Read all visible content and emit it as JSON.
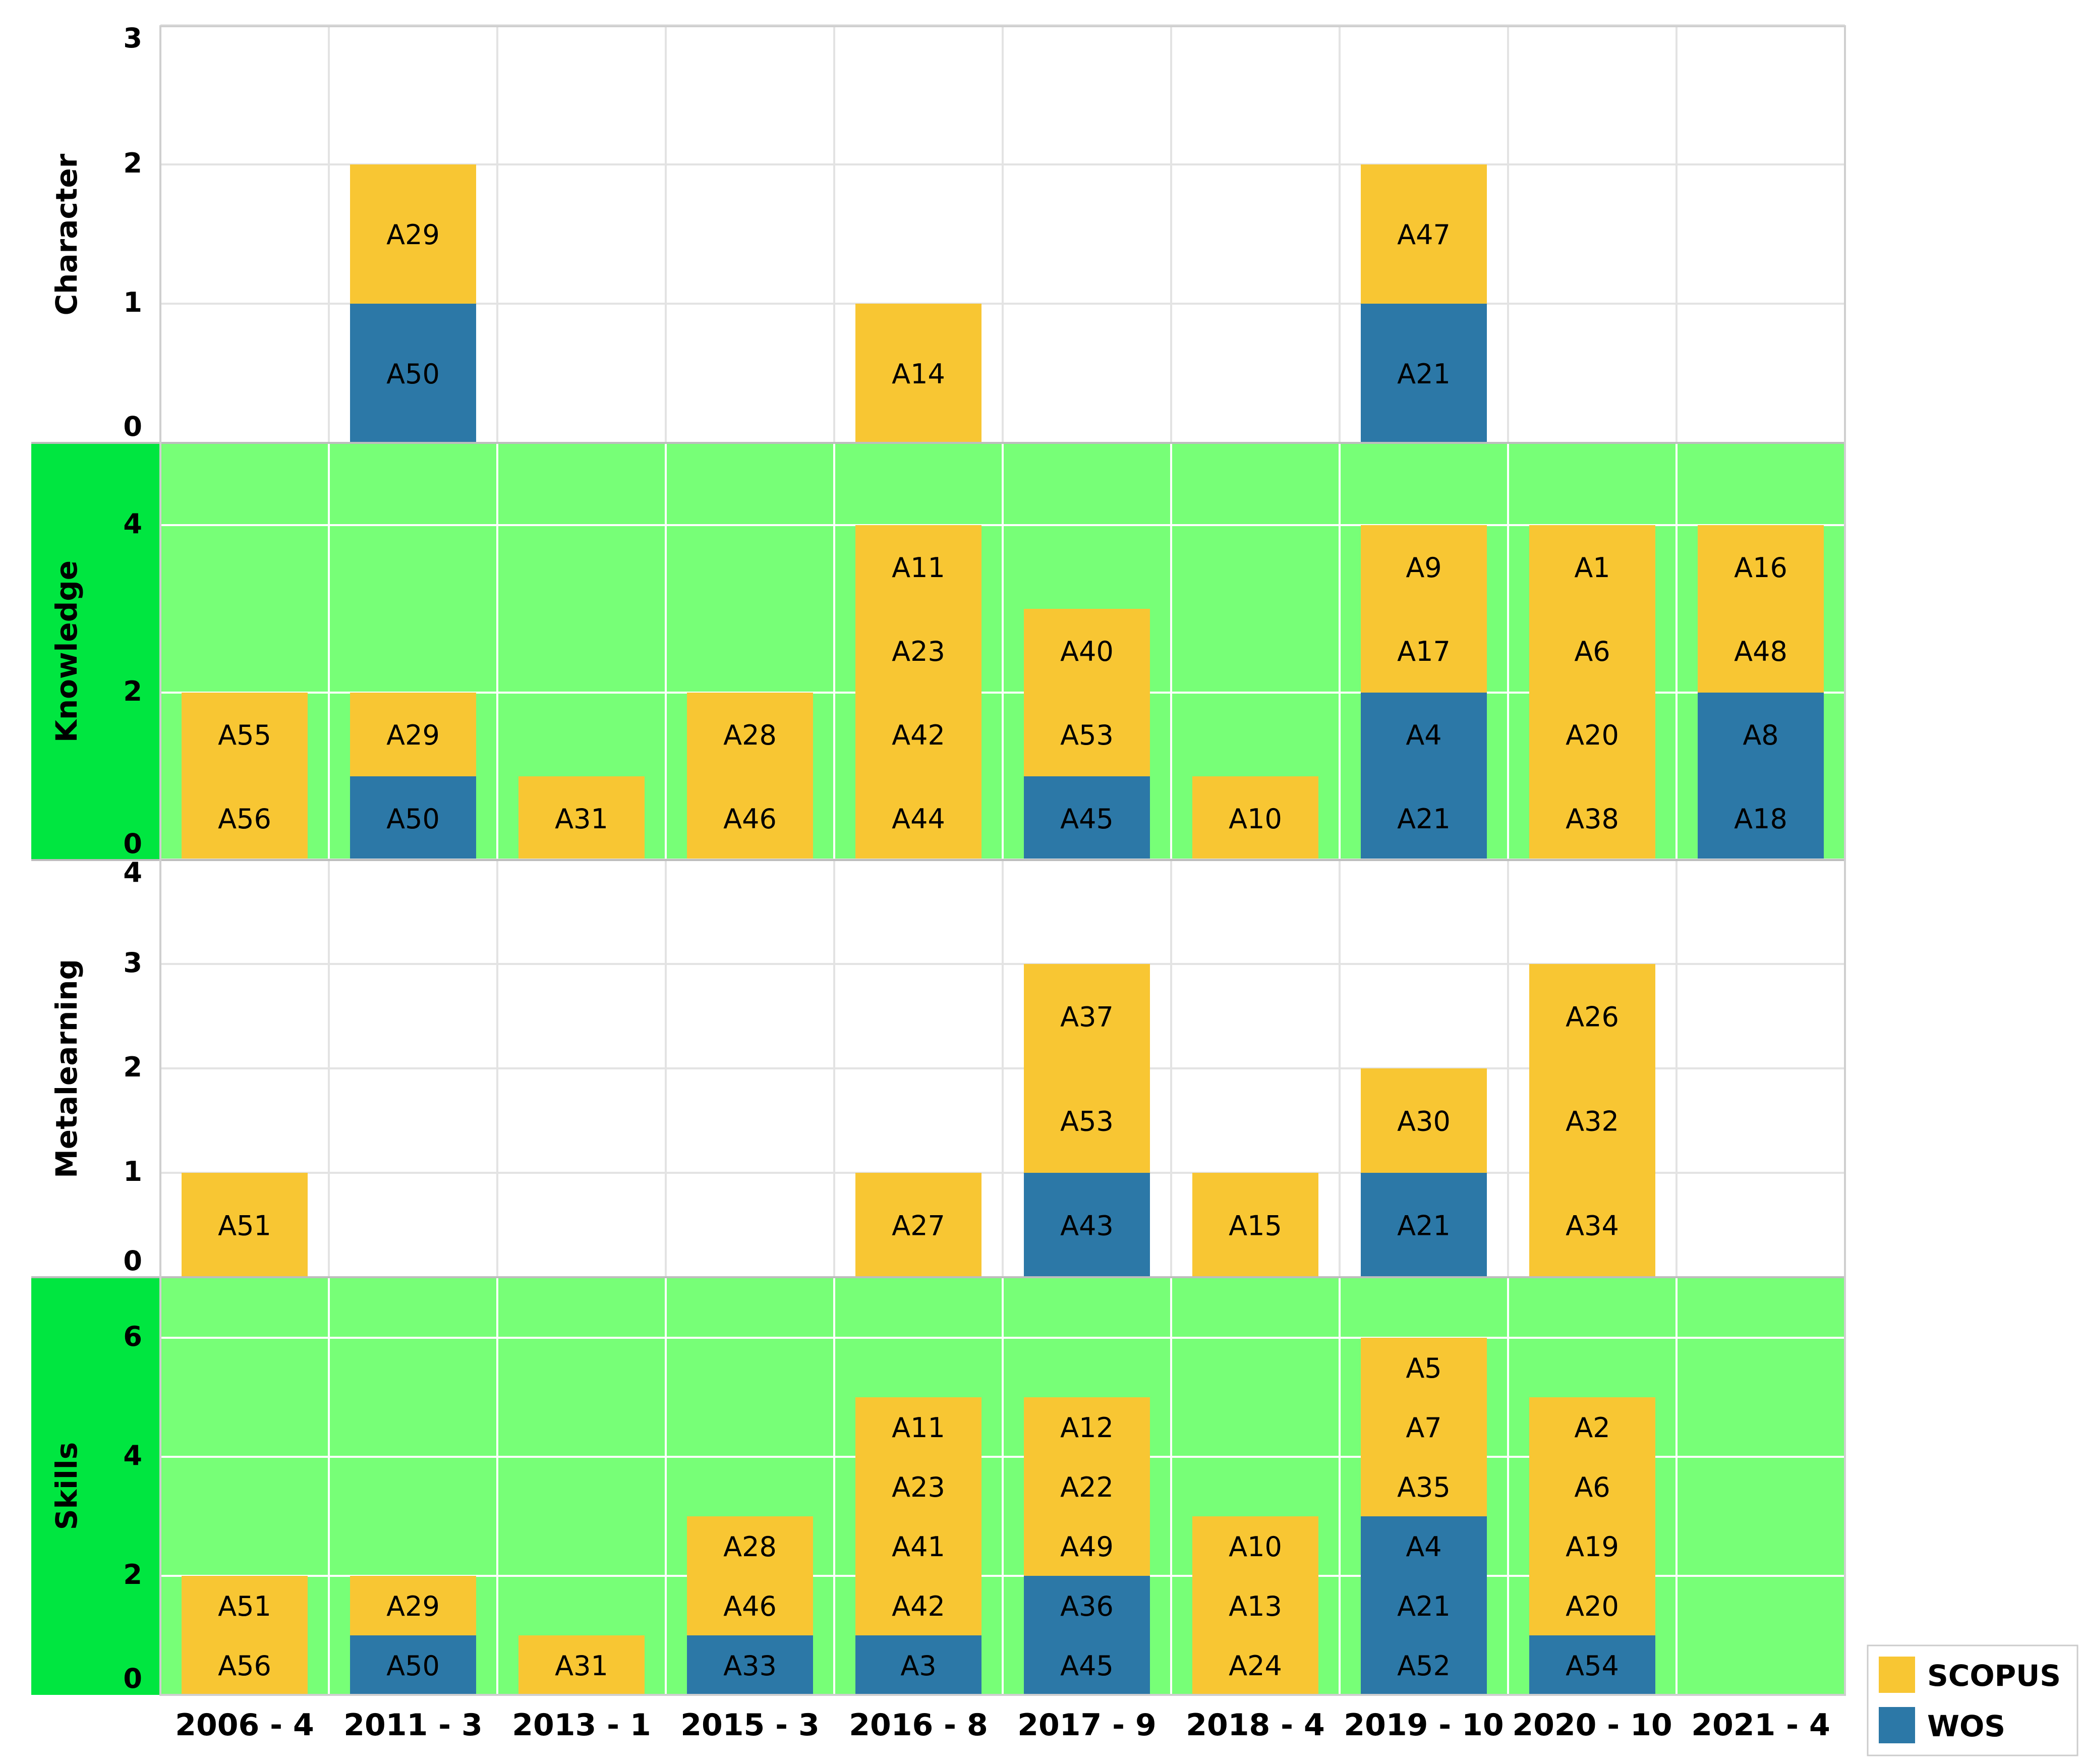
{
  "chart_data": {
    "type": "bar",
    "stacked": true,
    "categories": [
      "2006 - 4",
      "2011 - 3",
      "2013 - 1",
      "2015 - 3",
      "2016 - 8",
      "2017 - 9",
      "2018 - 4",
      "2019 - 10",
      "2020 - 10",
      "2021 - 4"
    ],
    "legend": {
      "position": "bottom-right",
      "items": [
        {
          "name": "SCOPUS",
          "color": "#f8c633"
        },
        {
          "name": "WOS",
          "color": "#2c78a7"
        }
      ]
    },
    "colors": {
      "scopus": "#f8c633",
      "wos": "#2c78a7",
      "panel_highlight": "#77ff77",
      "label_highlight": "#00e640",
      "grid_light": "#e3e3e3",
      "grid_on_green": "#ffffff"
    },
    "panels": [
      {
        "name": "Character",
        "highlight": false,
        "ylim": [
          0,
          3
        ],
        "yticks": [
          0,
          1,
          2,
          3
        ],
        "bars": [
          {
            "category": "2011 - 3",
            "wos": [
              "A50"
            ],
            "scopus": [
              "A29"
            ]
          },
          {
            "category": "2016 - 8",
            "wos": [],
            "scopus": [
              "A14"
            ]
          },
          {
            "category": "2019 - 10",
            "wos": [
              "A21"
            ],
            "scopus": [
              "A47"
            ]
          }
        ]
      },
      {
        "name": "Knowledge",
        "highlight": true,
        "ylim": [
          0,
          4.9
        ],
        "yticks": [
          0,
          2,
          4
        ],
        "bars": [
          {
            "category": "2006 - 4",
            "wos": [],
            "scopus": [
              "A56",
              "A55"
            ]
          },
          {
            "category": "2011 - 3",
            "wos": [
              "A50"
            ],
            "scopus": [
              "A29"
            ]
          },
          {
            "category": "2013 - 1",
            "wos": [],
            "scopus": [
              "A31"
            ]
          },
          {
            "category": "2015 - 3",
            "wos": [],
            "scopus": [
              "A46",
              "A28"
            ]
          },
          {
            "category": "2016 - 8",
            "wos": [],
            "scopus": [
              "A44",
              "A42",
              "A23",
              "A11"
            ]
          },
          {
            "category": "2017 - 9",
            "wos": [
              "A45"
            ],
            "scopus": [
              "A53",
              "A40"
            ]
          },
          {
            "category": "2018 - 4",
            "wos": [],
            "scopus": [
              "A10"
            ]
          },
          {
            "category": "2019 - 10",
            "wos": [
              "A21",
              "A4"
            ],
            "scopus": [
              "A17",
              "A9"
            ]
          },
          {
            "category": "2020 - 10",
            "wos": [],
            "scopus": [
              "A38",
              "A20",
              "A6",
              "A1"
            ]
          },
          {
            "category": "2021 - 4",
            "wos": [
              "A18",
              "A8"
            ],
            "scopus": [
              "A48",
              "A16"
            ]
          }
        ]
      },
      {
        "name": "Metalearning",
        "highlight": false,
        "ylim": [
          0,
          4
        ],
        "yticks": [
          0,
          1,
          2,
          3,
          4
        ],
        "bars": [
          {
            "category": "2006 - 4",
            "wos": [],
            "scopus": [
              "A51"
            ]
          },
          {
            "category": "2016 - 8",
            "wos": [],
            "scopus": [
              "A27"
            ]
          },
          {
            "category": "2017 - 9",
            "wos": [
              "A43"
            ],
            "scopus": [
              "A53",
              "A37"
            ]
          },
          {
            "category": "2018 - 4",
            "wos": [],
            "scopus": [
              "A15"
            ]
          },
          {
            "category": "2019 - 10",
            "wos": [
              "A21"
            ],
            "scopus": [
              "A30"
            ]
          },
          {
            "category": "2020 - 10",
            "wos": [],
            "scopus": [
              "A34",
              "A32",
              "A26"
            ]
          }
        ]
      },
      {
        "name": "Skills",
        "highlight": true,
        "ylim": [
          0,
          7
        ],
        "yticks": [
          0,
          2,
          4,
          6
        ],
        "bars": [
          {
            "category": "2006 - 4",
            "wos": [],
            "scopus": [
              "A56",
              "A51"
            ]
          },
          {
            "category": "2011 - 3",
            "wos": [
              "A50"
            ],
            "scopus": [
              "A29"
            ]
          },
          {
            "category": "2013 - 1",
            "wos": [],
            "scopus": [
              "A31"
            ]
          },
          {
            "category": "2015 - 3",
            "wos": [
              "A33"
            ],
            "scopus": [
              "A46",
              "A28"
            ]
          },
          {
            "category": "2016 - 8",
            "wos": [
              "A3"
            ],
            "scopus": [
              "A42",
              "A41",
              "A23",
              "A11"
            ]
          },
          {
            "category": "2017 - 9",
            "wos": [
              "A45",
              "A36"
            ],
            "scopus": [
              "A49",
              "A22",
              "A12"
            ]
          },
          {
            "category": "2018 - 4",
            "wos": [],
            "scopus": [
              "A24",
              "A13",
              "A10"
            ]
          },
          {
            "category": "2019 - 10",
            "wos": [
              "A52",
              "A21",
              "A4"
            ],
            "scopus": [
              "A35",
              "A7",
              "A5"
            ]
          },
          {
            "category": "2020 - 10",
            "wos": [
              "A54"
            ],
            "scopus": [
              "A20",
              "A19",
              "A6",
              "A2"
            ]
          },
          {
            "category": "2021 - 4",
            "wos": [],
            "scopus": []
          }
        ]
      }
    ]
  }
}
